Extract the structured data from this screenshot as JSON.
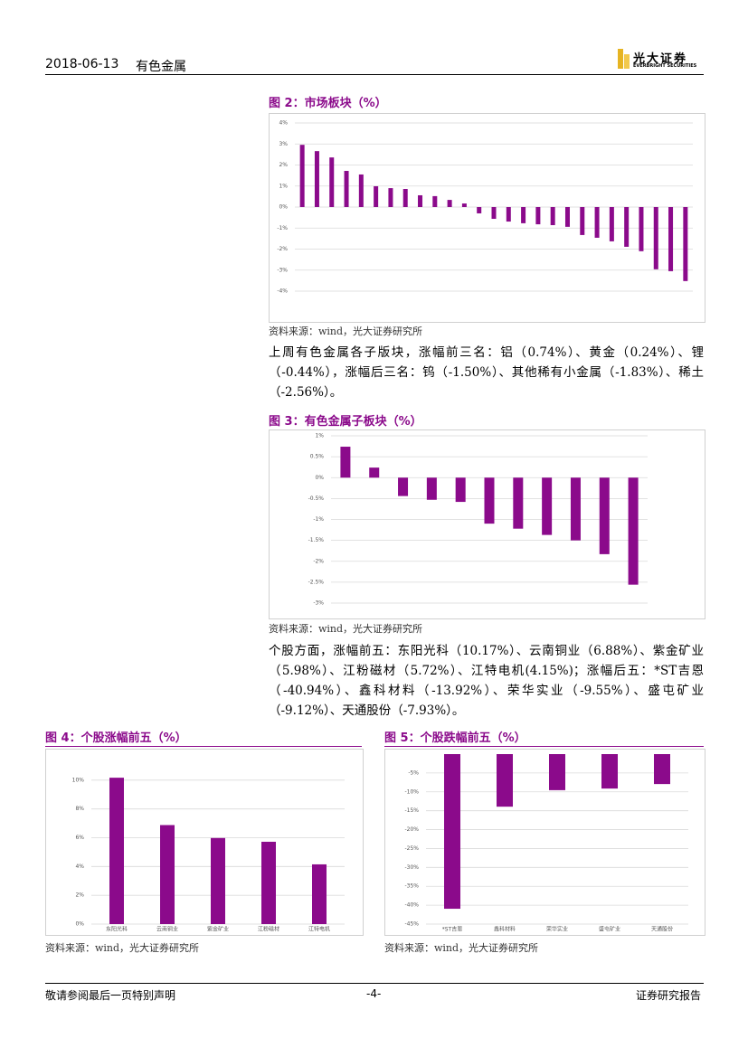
{
  "header": {
    "date": "2018-06-13",
    "section": "有色金属",
    "logo": "光大证券",
    "logo_en": "EVERBRIGHT SECURITIES"
  },
  "chart_data": [
    {
      "type": "bar",
      "title": "图 2：市场板块（%）",
      "color": "#8b0a8b",
      "categories": [
        null,
        null,
        null,
        null,
        null,
        null,
        null,
        null,
        null,
        null,
        null,
        null,
        null,
        null,
        null,
        null,
        null,
        null,
        null,
        null,
        null,
        null,
        null,
        null,
        null,
        null,
        null
      ],
      "values": [
        2.96,
        2.66,
        2.36,
        1.72,
        1.55,
        0.99,
        0.9,
        0.86,
        0.56,
        0.52,
        0.34,
        0.17,
        -0.3,
        -0.56,
        -0.69,
        -0.77,
        -0.82,
        -0.86,
        -0.94,
        -1.33,
        -1.46,
        -1.63,
        -1.89,
        -2.1,
        -2.96,
        -3.05,
        -3.52
      ],
      "ylim": [
        -4,
        4
      ],
      "yticks": [
        {
          "value": 4,
          "label": "4%"
        },
        {
          "value": 3,
          "label": "3%"
        },
        {
          "value": 2,
          "label": "2%"
        },
        {
          "value": 1,
          "label": "1%"
        },
        {
          "value": 0,
          "label": "0%"
        },
        {
          "value": -1,
          "label": "-1%"
        },
        {
          "value": -2,
          "label": "-2%"
        },
        {
          "value": -3,
          "label": "-3%"
        },
        {
          "value": -4,
          "label": "-4%"
        }
      ],
      "grid": true
    },
    {
      "type": "bar",
      "title": "图 3：有色金属子板块（%）",
      "color": "#8b0a8b",
      "categories": [
        null,
        null,
        null,
        null,
        null,
        null,
        null,
        null,
        null,
        null,
        null
      ],
      "values": [
        0.74,
        0.24,
        -0.44,
        -0.53,
        -0.58,
        -1.1,
        -1.22,
        -1.37,
        -1.5,
        -1.83,
        -2.56
      ],
      "ylim": [
        -3,
        1
      ],
      "yticks": [
        {
          "value": 1,
          "label": "1%"
        },
        {
          "value": 0.5,
          "label": "0.5%"
        },
        {
          "value": 0,
          "label": "0%"
        },
        {
          "value": -0.5,
          "label": "-0.5%"
        },
        {
          "value": -1,
          "label": "-1%"
        },
        {
          "value": -1.5,
          "label": "-1.5%"
        },
        {
          "value": -2,
          "label": "-2%"
        },
        {
          "value": -2.5,
          "label": "-2.5%"
        },
        {
          "value": -3,
          "label": "-3%"
        }
      ],
      "grid": true
    },
    {
      "type": "bar",
      "title": "图 4：个股涨幅前五（%）",
      "color": "#8b0a8b",
      "categories": [
        "东阳光科",
        "云南铜业",
        "紫金矿业",
        "江粉磁材",
        "江特电机"
      ],
      "values": [
        10.17,
        6.88,
        5.98,
        5.72,
        4.15
      ],
      "ylim": [
        0,
        12
      ],
      "yticks": [
        {
          "value": 0,
          "label": "0%"
        },
        {
          "value": 2,
          "label": "2%"
        },
        {
          "value": 4,
          "label": "4%"
        },
        {
          "value": 6,
          "label": "6%"
        },
        {
          "value": 8,
          "label": "8%"
        },
        {
          "value": 10,
          "label": "10%"
        }
      ],
      "grid": true
    },
    {
      "type": "bar",
      "title": "图 5：个股跌幅前五（%）",
      "color": "#8b0a8b",
      "categories": [
        "*ST吉恩",
        "鑫科材料",
        "荣华实业",
        "盛屯矿业",
        "天通股份"
      ],
      "values": [
        -40.94,
        -13.92,
        -9.55,
        -9.12,
        -7.93
      ],
      "ylim": [
        -45,
        0
      ],
      "yticks": [
        {
          "value": -5,
          "label": "-5%"
        },
        {
          "value": -10,
          "label": "-10%"
        },
        {
          "value": -15,
          "label": "-15%"
        },
        {
          "value": -20,
          "label": "-20%"
        },
        {
          "value": -25,
          "label": "-25%"
        },
        {
          "value": -30,
          "label": "-30%"
        },
        {
          "value": -35,
          "label": "-35%"
        },
        {
          "value": -40,
          "label": "-40%"
        },
        {
          "value": -45,
          "label": "-45%"
        }
      ],
      "grid": true
    }
  ],
  "sources": [
    "资料来源：wind，光大证券研究所",
    "资料来源：wind，光大证券研究所",
    "资料来源：wind，光大证券研究所",
    "资料来源：wind，光大证券研究所"
  ],
  "paragraphs": [
    "上周有色金属各子版块，涨幅前三名：铝（0.74%）、黄金（0.24%）、锂（-0.44%），涨幅后三名：钨（-1.50%）、其他稀有小金属（-1.83%）、稀土（-2.56%）。",
    "个股方面，涨幅前五：东阳光科（10.17%）、云南铜业（6.88%）、紫金矿业（5.98%）、江粉磁材（5.72%）、江特电机(4.15%)；涨幅后五：*ST吉恩（-40.94%）、鑫科材料（-13.92%）、荣华实业（-9.55%）、盛屯矿业（-9.12%）、天通股份（-7.93%）。"
  ],
  "footer": {
    "disclaimer": "敬请参阅最后一页特别声明",
    "page": "-4-",
    "type": "证券研究报告"
  }
}
